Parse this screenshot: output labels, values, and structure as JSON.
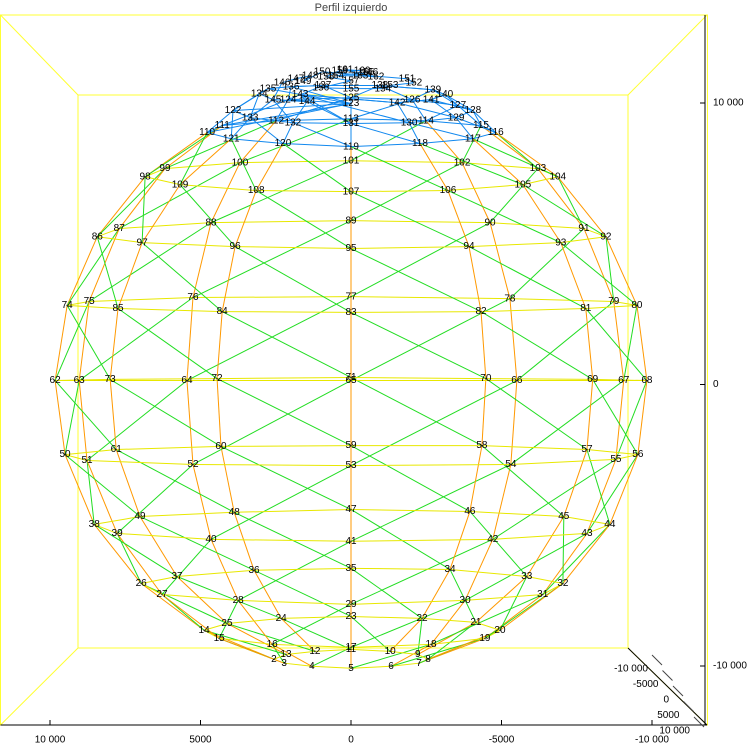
{
  "chart_data": {
    "type": "mesh3d",
    "title": "Perfil izquierdo",
    "xlim": [
      10000,
      -10000
    ],
    "ylim": [
      -10000,
      10000
    ],
    "zlim": [
      -10000,
      10000
    ],
    "xticks": [
      {
        "value": 10000,
        "label": "10 000"
      },
      5000,
      0,
      -5000,
      {
        "value": -10000,
        "label": "-10 000"
      }
    ],
    "yticks": [
      {
        "value": -10000,
        "label": "-10 000"
      },
      0,
      {
        "value": 10000,
        "label": "10 000"
      }
    ],
    "zticks": [
      {
        "value": -10000,
        "label": "-10 000"
      },
      -5000,
      0,
      5000,
      {
        "value": 10000,
        "label": "10 000"
      }
    ],
    "ring_color": "#e8e800",
    "meridian_color": "#ff9900",
    "diagonal_color": "#22dd22",
    "top_color": "#1188ee",
    "nodes": [
      {
        "id": "2",
        "x": 2560,
        "y": -9760
      },
      {
        "id": "3",
        "x": 2220,
        "y": -9900
      },
      {
        "id": "4",
        "x": 1300,
        "y": -10010
      },
      {
        "id": "5",
        "x": 0,
        "y": -10080
      },
      {
        "id": "6",
        "x": -1330,
        "y": -10010
      },
      {
        "id": "7",
        "x": -2260,
        "y": -9900
      },
      {
        "id": "8",
        "x": -2560,
        "y": -9760
      },
      {
        "id": "9",
        "x": -2220,
        "y": -9590
      },
      {
        "id": "10",
        "x": -1300,
        "y": -9480
      },
      {
        "id": "11",
        "x": 0,
        "y": -9410
      },
      {
        "id": "12",
        "x": 1200,
        "y": -9480
      },
      {
        "id": "13",
        "x": 2160,
        "y": -9590
      },
      {
        "id": "14",
        "x": 4880,
        "y": -8730
      },
      {
        "id": "15",
        "x": 4380,
        "y": -9020
      },
      {
        "id": "16",
        "x": 2620,
        "y": -9230
      },
      {
        "id": "17",
        "x": 0,
        "y": -9340
      },
      {
        "id": "18",
        "x": -2660,
        "y": -9230
      },
      {
        "id": "19",
        "x": -4450,
        "y": -9020
      },
      {
        "id": "20",
        "x": -4950,
        "y": -8730
      },
      {
        "id": "21",
        "x": -4150,
        "y": -8450
      },
      {
        "id": "22",
        "x": -2360,
        "y": -8310
      },
      {
        "id": "23",
        "x": 0,
        "y": -8240
      },
      {
        "id": "24",
        "x": 2320,
        "y": -8310
      },
      {
        "id": "25",
        "x": 4120,
        "y": -8490
      },
      {
        "id": "26",
        "x": 6970,
        "y": -7070
      },
      {
        "id": "27",
        "x": 6280,
        "y": -7460
      },
      {
        "id": "28",
        "x": 3750,
        "y": -7670
      },
      {
        "id": "29",
        "x": 0,
        "y": -7810
      },
      {
        "id": "30",
        "x": -3790,
        "y": -7670
      },
      {
        "id": "31",
        "x": -6370,
        "y": -7460
      },
      {
        "id": "32",
        "x": -7040,
        "y": -7070
      },
      {
        "id": "33",
        "x": -5840,
        "y": -6820
      },
      {
        "id": "34",
        "x": -3290,
        "y": -6570
      },
      {
        "id": "35",
        "x": 0,
        "y": -6530
      },
      {
        "id": "36",
        "x": 3220,
        "y": -6600
      },
      {
        "id": "37",
        "x": 5780,
        "y": -6820
      },
      {
        "id": "38",
        "x": 8530,
        "y": -4970
      },
      {
        "id": "39",
        "x": 7770,
        "y": -5290
      },
      {
        "id": "40",
        "x": 4650,
        "y": -5500
      },
      {
        "id": "41",
        "x": 0,
        "y": -5570
      },
      {
        "id": "42",
        "x": -4710,
        "y": -5500
      },
      {
        "id": "43",
        "x": -7840,
        "y": -5290
      },
      {
        "id": "44",
        "x": -8600,
        "y": -4970
      },
      {
        "id": "45",
        "x": -7070,
        "y": -4690
      },
      {
        "id": "46",
        "x": -3950,
        "y": -4510
      },
      {
        "id": "47",
        "x": 0,
        "y": -4440
      },
      {
        "id": "48",
        "x": 3880,
        "y": -4540
      },
      {
        "id": "49",
        "x": 7010,
        "y": -4690
      },
      {
        "id": "50",
        "x": 9500,
        "y": -2490
      },
      {
        "id": "51",
        "x": 8770,
        "y": -2700
      },
      {
        "id": "52",
        "x": 5250,
        "y": -2840
      },
      {
        "id": "53",
        "x": 0,
        "y": -2880
      },
      {
        "id": "54",
        "x": -5310,
        "y": -2840
      },
      {
        "id": "55",
        "x": -8800,
        "y": -2660
      },
      {
        "id": "56",
        "x": -9530,
        "y": -2490
      },
      {
        "id": "57",
        "x": -7840,
        "y": -2310
      },
      {
        "id": "58",
        "x": -4350,
        "y": -2170
      },
      {
        "id": "59",
        "x": 0,
        "y": -2170
      },
      {
        "id": "60",
        "x": 4320,
        "y": -2200
      },
      {
        "id": "61",
        "x": 7800,
        "y": -2310
      },
      {
        "id": "62",
        "x": 9830,
        "y": 140
      },
      {
        "id": "63",
        "x": 9030,
        "y": 140
      },
      {
        "id": "64",
        "x": 5450,
        "y": 140
      },
      {
        "id": "65",
        "x": 0,
        "y": 140
      },
      {
        "id": "66",
        "x": -5510,
        "y": 140
      },
      {
        "id": "67",
        "x": -9060,
        "y": 140
      },
      {
        "id": "68",
        "x": -9830,
        "y": 140
      },
      {
        "id": "69",
        "x": -8030,
        "y": 180
      },
      {
        "id": "70",
        "x": -4480,
        "y": 210
      },
      {
        "id": "71",
        "x": 0,
        "y": 250
      },
      {
        "id": "72",
        "x": 4450,
        "y": 210
      },
      {
        "id": "73",
        "x": 8000,
        "y": 180
      },
      {
        "id": "74",
        "x": 9430,
        "y": 2810
      },
      {
        "id": "75",
        "x": 8700,
        "y": 2950
      },
      {
        "id": "76",
        "x": 5250,
        "y": 3090
      },
      {
        "id": "77",
        "x": 0,
        "y": 3120
      },
      {
        "id": "78",
        "x": -5280,
        "y": 3050
      },
      {
        "id": "79",
        "x": -8730,
        "y": 2950
      },
      {
        "id": "80",
        "x": -9500,
        "y": 2810
      },
      {
        "id": "81",
        "x": -7800,
        "y": 2700
      },
      {
        "id": "82",
        "x": -4320,
        "y": 2590
      },
      {
        "id": "83",
        "x": 0,
        "y": 2560
      },
      {
        "id": "84",
        "x": 4280,
        "y": 2590
      },
      {
        "id": "85",
        "x": 7740,
        "y": 2700
      },
      {
        "id": "86",
        "x": 8430,
        "y": 5250
      },
      {
        "id": "87",
        "x": 7700,
        "y": 5540
      },
      {
        "id": "88",
        "x": 4650,
        "y": 5750
      },
      {
        "id": "89",
        "x": 0,
        "y": 5820
      },
      {
        "id": "90",
        "x": -4620,
        "y": 5750
      },
      {
        "id": "91",
        "x": -7740,
        "y": 5540
      },
      {
        "id": "92",
        "x": -8470,
        "y": 5250
      },
      {
        "id": "93",
        "x": -6970,
        "y": 5040
      },
      {
        "id": "94",
        "x": -3920,
        "y": 4900
      },
      {
        "id": "95",
        "x": 0,
        "y": 4830
      },
      {
        "id": "96",
        "x": 3850,
        "y": 4900
      },
      {
        "id": "97",
        "x": 6940,
        "y": 5040
      },
      {
        "id": "98",
        "x": 6840,
        "y": 7380
      },
      {
        "id": "99",
        "x": 6180,
        "y": 7670
      },
      {
        "id": "100",
        "x": 3690,
        "y": 7880
      },
      {
        "id": "101",
        "x": 0,
        "y": 7950
      },
      {
        "id": "102",
        "x": -3690,
        "y": 7880
      },
      {
        "id": "103",
        "x": -6210,
        "y": 7670
      },
      {
        "id": "104",
        "x": -6870,
        "y": 7380
      },
      {
        "id": "105",
        "x": -5710,
        "y": 7100
      },
      {
        "id": "106",
        "x": -3220,
        "y": 6890
      },
      {
        "id": "107",
        "x": 0,
        "y": 6850
      },
      {
        "id": "108",
        "x": 3150,
        "y": 6890
      },
      {
        "id": "109",
        "x": 5680,
        "y": 7100
      },
      {
        "id": "110",
        "x": 4780,
        "y": 8950
      },
      {
        "id": "111",
        "x": 4280,
        "y": 9200
      },
      {
        "id": "112",
        "x": 2490,
        "y": 9370
      },
      {
        "id": "113",
        "x": 0,
        "y": 9440
      },
      {
        "id": "114",
        "x": -2490,
        "y": 9370
      },
      {
        "id": "115",
        "x": -4320,
        "y": 9200
      },
      {
        "id": "116",
        "x": -4810,
        "y": 8950
      },
      {
        "id": "117",
        "x": -4050,
        "y": 8730
      },
      {
        "id": "118",
        "x": -2290,
        "y": 8560
      },
      {
        "id": "119",
        "x": 0,
        "y": 8450
      },
      {
        "id": "120",
        "x": 2260,
        "y": 8560
      },
      {
        "id": "121",
        "x": 3980,
        "y": 8730
      },
      {
        "id": "122",
        "x": 3920,
        "y": 9730
      },
      {
        "id": "123",
        "x": 0,
        "y": 9980
      },
      {
        "id": "124",
        "x": 2090,
        "y": 10120
      },
      {
        "id": "125",
        "x": 0,
        "y": 10190
      },
      {
        "id": "126",
        "x": -2030,
        "y": 10120
      },
      {
        "id": "127",
        "x": -3550,
        "y": 9910
      },
      {
        "id": "128",
        "x": -4050,
        "y": 9730
      },
      {
        "id": "129",
        "x": -3490,
        "y": 9480
      },
      {
        "id": "130",
        "x": -1930,
        "y": 9300
      },
      {
        "id": "131",
        "x": 0,
        "y": 9270
      },
      {
        "id": "132",
        "x": 1930,
        "y": 9300
      },
      {
        "id": "133",
        "x": 3350,
        "y": 9480
      },
      {
        "id": "134",
        "x": 3050,
        "y": 10330
      },
      {
        "id": "135",
        "x": 2760,
        "y": 10510
      },
      {
        "id": "136",
        "x": 1990,
        "y": 10580
      },
      {
        "id": "137",
        "x": 930,
        "y": 10620
      },
      {
        "id": "138",
        "x": -960,
        "y": 10620
      },
      {
        "id": "139",
        "x": -2720,
        "y": 10470
      },
      {
        "id": "140",
        "x": -3120,
        "y": 10300
      },
      {
        "id": "141",
        "x": -2660,
        "y": 10120
      },
      {
        "id": "142",
        "x": -1530,
        "y": 10010
      },
      {
        "id": "143",
        "x": 1690,
        "y": 10300
      },
      {
        "id": "144",
        "x": 1460,
        "y": 10050
      },
      {
        "id": "145",
        "x": 2590,
        "y": 10120
      },
      {
        "id": "146",
        "x": 2290,
        "y": 10720
      },
      {
        "id": "147",
        "x": 1830,
        "y": 10860
      },
      {
        "id": "148",
        "x": 1360,
        "y": 10970
      },
      {
        "id": "149",
        "x": 1590,
        "y": 10760
      },
      {
        "id": "150",
        "x": 960,
        "y": 11110
      },
      {
        "id": "151",
        "x": -1860,
        "y": 10860
      },
      {
        "id": "152",
        "x": -2090,
        "y": 10720
      },
      {
        "id": "153",
        "x": -1300,
        "y": 10620
      },
      {
        "id": "154",
        "x": -1060,
        "y": 10510
      },
      {
        "id": "155",
        "x": 0,
        "y": 10510
      },
      {
        "id": "156",
        "x": 1000,
        "y": 10540
      },
      {
        "id": "157",
        "x": 0,
        "y": 10790
      },
      {
        "id": "158",
        "x": 830,
        "y": 10930
      },
      {
        "id": "159",
        "x": 370,
        "y": 11150
      },
      {
        "id": "160",
        "x": -370,
        "y": 11150
      },
      {
        "id": "161",
        "x": 200,
        "y": 11180
      },
      {
        "id": "162",
        "x": -830,
        "y": 10930
      },
      {
        "id": "163",
        "x": -300,
        "y": 10970
      },
      {
        "id": "164",
        "x": 500,
        "y": 10970
      },
      {
        "id": "165",
        "x": -500,
        "y": 11080
      },
      {
        "id": "166",
        "x": -630,
        "y": 11080
      }
    ]
  }
}
